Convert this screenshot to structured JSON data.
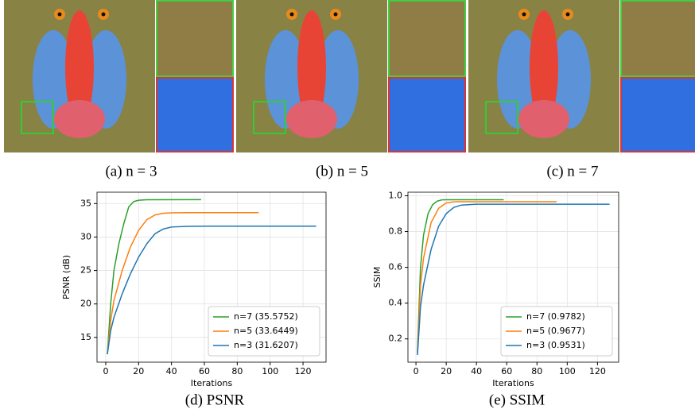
{
  "images": [
    {
      "caption": "(a) n = 3"
    },
    {
      "caption": "(b) n = 5"
    },
    {
      "caption": "(c) n = 7"
    }
  ],
  "chart_data": [
    {
      "type": "line",
      "caption": "(d) PSNR",
      "xlabel": "Iterations",
      "ylabel": "PSNR (dB)",
      "xlim": [
        -5.3,
        134
      ],
      "xticks": [
        0,
        20,
        40,
        60,
        80,
        100,
        120
      ],
      "ylim": [
        11.3,
        36.7
      ],
      "yticks": [
        15,
        20,
        25,
        30,
        35
      ],
      "grid": true,
      "legend": "lower right",
      "series": [
        {
          "name": "n=7 (35.5752)",
          "color": "#2ca02c",
          "x": [
            1,
            3,
            5,
            8,
            11,
            14,
            17,
            20,
            25,
            58
          ],
          "values": [
            12.5,
            20,
            25,
            29,
            32,
            34.5,
            35.3,
            35.5,
            35.57,
            35.58
          ]
        },
        {
          "name": "n=5 (33.6449)",
          "color": "#ff7f0e",
          "x": [
            1,
            3,
            5,
            10,
            15,
            20,
            25,
            30,
            35,
            40,
            50,
            93
          ],
          "values": [
            12.5,
            17.5,
            20.5,
            25,
            28.5,
            31,
            32.6,
            33.3,
            33.55,
            33.62,
            33.64,
            33.64
          ]
        },
        {
          "name": "n=3 (31.6207)",
          "color": "#1f77b4",
          "x": [
            1,
            3,
            5,
            10,
            15,
            20,
            25,
            30,
            35,
            40,
            50,
            60,
            128
          ],
          "values": [
            12.5,
            16,
            18,
            21.5,
            24.5,
            27,
            29,
            30.5,
            31.2,
            31.5,
            31.6,
            31.62,
            31.62
          ]
        }
      ]
    },
    {
      "type": "line",
      "caption": "(e) SSIM",
      "xlabel": "Iterations",
      "ylabel": "SSIM",
      "xlim": [
        -5.3,
        134
      ],
      "xticks": [
        0,
        20,
        40,
        60,
        80,
        100,
        120
      ],
      "ylim": [
        0.07,
        1.02
      ],
      "yticks": [
        0.2,
        0.4,
        0.6,
        0.8,
        {
          "value": 1,
          "label": "1.0"
        }
      ],
      "grid": true,
      "legend": "lower right",
      "series": [
        {
          "name": "n=7 (0.9782)",
          "color": "#2ca02c",
          "x": [
            1,
            3,
            5,
            8,
            11,
            14,
            17,
            20,
            58
          ],
          "values": [
            0.13,
            0.6,
            0.78,
            0.9,
            0.95,
            0.97,
            0.977,
            0.978,
            0.978
          ]
        },
        {
          "name": "n=5 (0.9677)",
          "color": "#ff7f0e",
          "x": [
            1,
            3,
            5,
            10,
            15,
            20,
            25,
            30,
            93
          ],
          "values": [
            0.12,
            0.5,
            0.65,
            0.85,
            0.93,
            0.96,
            0.966,
            0.967,
            0.967
          ]
        },
        {
          "name": "n=3 (0.9531)",
          "color": "#1f77b4",
          "x": [
            1,
            3,
            5,
            10,
            15,
            20,
            25,
            30,
            40,
            128
          ],
          "values": [
            0.11,
            0.38,
            0.5,
            0.7,
            0.83,
            0.9,
            0.935,
            0.948,
            0.953,
            0.953
          ]
        }
      ]
    }
  ]
}
